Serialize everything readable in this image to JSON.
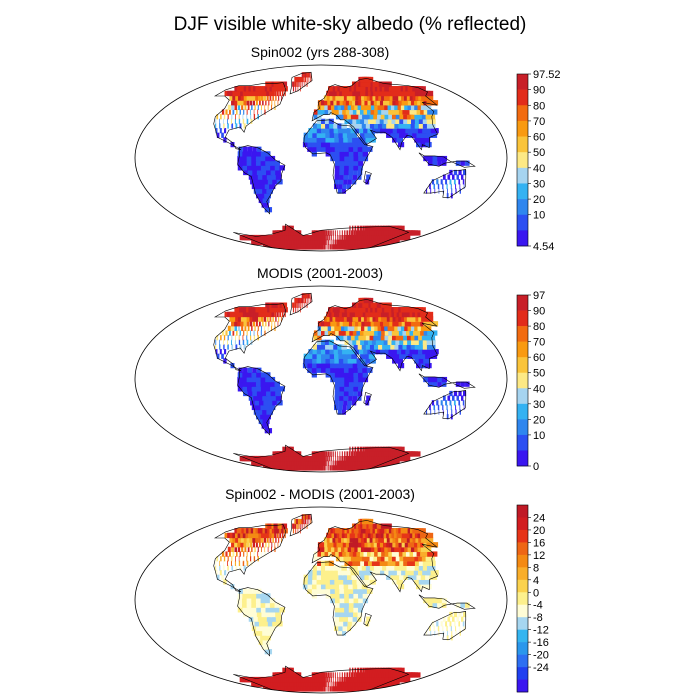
{
  "title": "DJF visible white-sky albedo (% reflected)",
  "colors": {
    "seq": [
      "#3a16f0",
      "#2c4ff2",
      "#2f86ef",
      "#34b2f2",
      "#a6d4f0",
      "#fde985",
      "#fac43a",
      "#f99a11",
      "#f26b10",
      "#e22c1a",
      "#c81f28"
    ],
    "diff": [
      "#3a16f0",
      "#2040f0",
      "#2d6ff2",
      "#2a97ec",
      "#34b5f0",
      "#a6d6f0",
      "#fffdd6",
      "#fdf08c",
      "#fbd24e",
      "#f9ae2a",
      "#f48a13",
      "#ee6615",
      "#e63418",
      "#d21d20",
      "#c01a26"
    ],
    "coast": "#000000",
    "frame": "#000000"
  },
  "panels": [
    {
      "title": "Spin002 (yrs 288-308)",
      "scale": "seq",
      "legend_labels": [
        "97.52",
        "90",
        "80",
        "70",
        "60",
        "50",
        "40",
        "30",
        "20",
        "10",
        "4.54"
      ]
    },
    {
      "title": "MODIS (2001-2003)",
      "scale": "seq",
      "legend_labels": [
        "97",
        "90",
        "80",
        "70",
        "60",
        "50",
        "40",
        "30",
        "20",
        "10",
        "0"
      ]
    },
    {
      "title": "Spin002 - MODIS (2001-2003)",
      "scale": "diff",
      "legend_labels": [
        "24",
        "20",
        "16",
        "12",
        "8",
        "4",
        "0",
        "-4",
        "-8",
        "-12",
        "-16",
        "-20",
        "-24"
      ]
    }
  ]
}
